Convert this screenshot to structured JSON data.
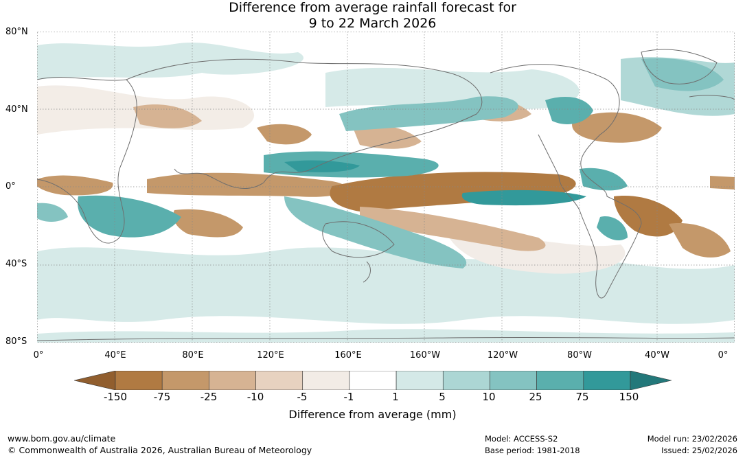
{
  "title": {
    "line1": "Difference from average rainfall forecast for",
    "line2": "9 to 22 March 2026"
  },
  "axes": {
    "lat_ticks": [
      "80°N",
      "40°N",
      "0°",
      "40°S",
      "80°S"
    ],
    "lon_ticks": [
      "0°",
      "40°E",
      "80°E",
      "120°E",
      "160°E",
      "160°W",
      "120°W",
      "80°W",
      "40°W",
      "0°"
    ]
  },
  "legend": {
    "title": "Difference from average (mm)",
    "labels": [
      "-150",
      "-75",
      "-25",
      "-10",
      "-5",
      "-1",
      "1",
      "5",
      "10",
      "25",
      "75",
      "150"
    ],
    "colors": [
      "#915e2e",
      "#b07a42",
      "#c4986a",
      "#d6b393",
      "#e7d2c0",
      "#f2ece6",
      "#ffffff",
      "#d4e9e7",
      "#acd6d4",
      "#84c3c1",
      "#5aafad",
      "#32999a",
      "#23787a"
    ]
  },
  "footer": {
    "website": "www.bom.gov.au/climate",
    "copyright": "© Commonwealth of Australia 2026, Australian Bureau of Meteorology",
    "model": "Model: ACCESS-S2",
    "base_period": "Base period: 1981-2018",
    "model_run": "Model run: 23/02/2026",
    "issued": "Issued: 25/02/2026"
  }
}
